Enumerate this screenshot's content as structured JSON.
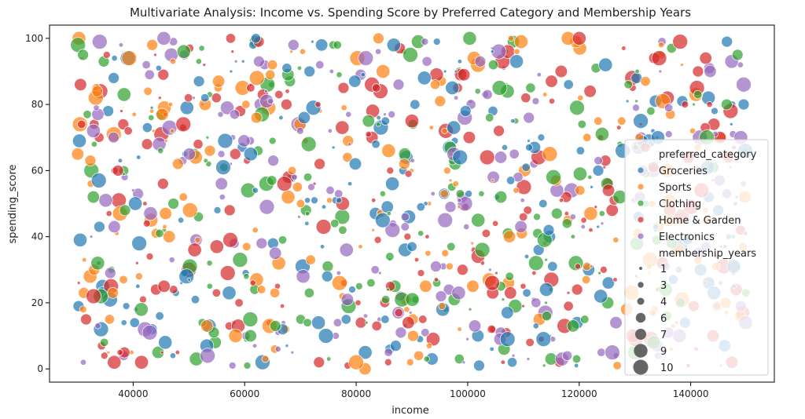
{
  "chart_data": {
    "type": "scatter",
    "title": "Multivariate Analysis: Income vs. Spending Score by Preferred Category and Membership Years",
    "xlabel": "income",
    "ylabel": "spending_score",
    "xlim": [
      25000,
      155000
    ],
    "ylim": [
      -4,
      104
    ],
    "x_ticks": [
      40000,
      60000,
      80000,
      100000,
      120000,
      140000
    ],
    "y_ticks": [
      0,
      20,
      40,
      60,
      80,
      100
    ],
    "grid": false,
    "legend_position": "right",
    "hue_title": "preferred_category",
    "size_title": "membership_years",
    "categories": [
      {
        "name": "Groceries",
        "color": "#1f77b4"
      },
      {
        "name": "Sports",
        "color": "#ff7f0e"
      },
      {
        "name": "Clothing",
        "color": "#2ca02c"
      },
      {
        "name": "Home & Garden",
        "color": "#d62728"
      },
      {
        "name": "Electronics",
        "color": "#9467bd"
      }
    ],
    "size_levels": [
      1,
      3,
      4,
      6,
      7,
      9,
      10
    ],
    "point_count": 1000,
    "income_range": [
      30000,
      150000
    ],
    "spending_range": [
      0,
      100
    ],
    "membership_range": [
      1,
      10
    ],
    "point_alpha": 0.7,
    "sample_points": [
      {
        "income": 30500,
        "spending_score": 39,
        "category": "Groceries",
        "membership_years": 9
      },
      {
        "income": 31000,
        "spending_score": 95,
        "category": "Clothing",
        "membership_years": 7
      },
      {
        "income": 36500,
        "spending_score": 88,
        "category": "Groceries",
        "membership_years": 7
      },
      {
        "income": 41500,
        "spending_score": 2,
        "category": "Home & Garden",
        "membership_years": 9
      },
      {
        "income": 45500,
        "spending_score": 100,
        "category": "Electronics",
        "membership_years": 9
      },
      {
        "income": 49000,
        "spending_score": 74,
        "category": "Home & Garden",
        "membership_years": 10
      },
      {
        "income": 56500,
        "spending_score": 69,
        "category": "Groceries",
        "membership_years": 10
      },
      {
        "income": 62000,
        "spending_score": 100,
        "category": "Groceries",
        "membership_years": 6
      },
      {
        "income": 77500,
        "spending_score": 73,
        "category": "Home & Garden",
        "membership_years": 9
      },
      {
        "income": 80000,
        "spending_score": 2,
        "category": "Sports",
        "membership_years": 10
      },
      {
        "income": 84000,
        "spending_score": 100,
        "category": "Sports",
        "membership_years": 7
      },
      {
        "income": 90000,
        "spending_score": 75,
        "category": "Home & Garden",
        "membership_years": 9
      },
      {
        "income": 97500,
        "spending_score": 73,
        "category": "Groceries",
        "membership_years": 9
      },
      {
        "income": 103500,
        "spending_score": 64,
        "category": "Home & Garden",
        "membership_years": 10
      },
      {
        "income": 118000,
        "spending_score": 100,
        "category": "Sports",
        "membership_years": 9
      },
      {
        "income": 120000,
        "spending_score": 100,
        "category": "Home & Garden",
        "membership_years": 9
      },
      {
        "income": 143500,
        "spending_score": 90,
        "category": "Electronics",
        "membership_years": 8
      },
      {
        "income": 146500,
        "spending_score": 99,
        "category": "Groceries",
        "membership_years": 7
      },
      {
        "income": 149500,
        "spending_score": 80,
        "category": "Groceries",
        "membership_years": 7
      },
      {
        "income": 149000,
        "spending_score": 70,
        "category": "Electronics",
        "membership_years": 9
      }
    ]
  }
}
